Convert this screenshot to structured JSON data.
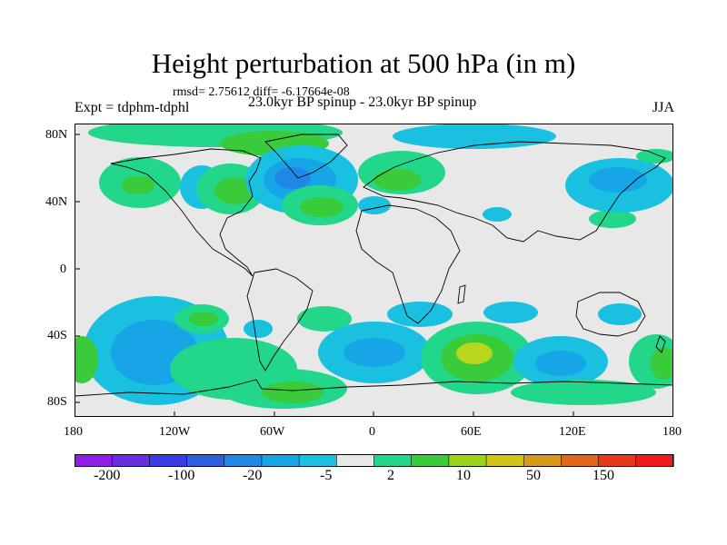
{
  "title": "Height perturbation at 500 hPa (in m)",
  "stats_line": "rmsd= 2.75612 diff= -6.17664e-08",
  "experiment": "Expt = tdphm-tdphl",
  "subtitle": "23.0kyr BP spinup - 23.0kyr BP spinup",
  "season": "JJA",
  "lat_labels": [
    "80N",
    "40N",
    "0",
    "40S",
    "80S"
  ],
  "lon_labels": [
    "180",
    "120W",
    "60W",
    "0",
    "60E",
    "120E",
    "180"
  ],
  "colorbar": {
    "labels": [
      "-200",
      "-100",
      "-20",
      "-5",
      "2",
      "10",
      "50",
      "150"
    ],
    "colors": [
      "#8f1ee6",
      "#6a2ee0",
      "#3c3ce6",
      "#2f5fe0",
      "#1f88e6",
      "#16a6e8",
      "#19c0e0",
      "#e8e8e8",
      "#22d68a",
      "#3acb3a",
      "#9ad21c",
      "#d4c418",
      "#d69a1a",
      "#e0661a",
      "#e8381a",
      "#f01c1c"
    ]
  },
  "colors": {
    "neutral": "#e8e8e8",
    "pos_1": "#22d68a",
    "pos_2": "#3acb3a",
    "pos_3": "#9ad21c",
    "neg_1": "#19c0e0",
    "neg_2": "#16a6e8",
    "neg_3": "#1f88e6"
  }
}
